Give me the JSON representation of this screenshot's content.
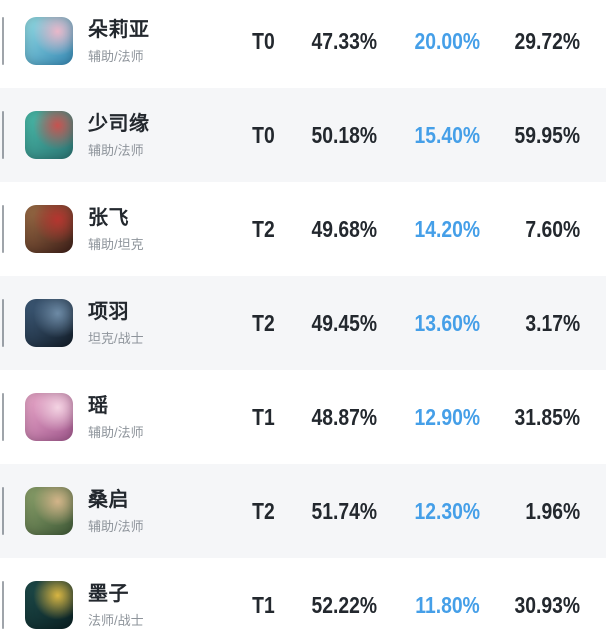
{
  "colors": {
    "accent_blue": "#459fe8",
    "text_dark": "#23282e",
    "text_gray": "#8e949b",
    "row_alt_bg": "#f5f6f8",
    "row_bg": "#ffffff"
  },
  "table": {
    "rows": [
      {
        "name": "朵莉亚",
        "role": "辅助/法师",
        "tier": "T0",
        "win_rate": "47.33%",
        "pick_rate": "20.00%",
        "ban_rate": "29.72%",
        "avatar_icon": "hero-avatar-duoliya",
        "avatar_colors": [
          "#8fd8e2",
          "#3e8fb8",
          "#e9b7c9"
        ]
      },
      {
        "name": "少司缘",
        "role": "辅助/法师",
        "tier": "T0",
        "win_rate": "50.18%",
        "pick_rate": "15.40%",
        "ban_rate": "59.95%",
        "avatar_icon": "hero-avatar-shaosiyuan",
        "avatar_colors": [
          "#49b9a8",
          "#2e7a78",
          "#c7524f"
        ]
      },
      {
        "name": "张飞",
        "role": "辅助/坦克",
        "tier": "T2",
        "win_rate": "49.68%",
        "pick_rate": "14.20%",
        "ban_rate": "7.60%",
        "avatar_icon": "hero-avatar-zhangfei",
        "avatar_colors": [
          "#9a6b45",
          "#45251c",
          "#b5352f"
        ]
      },
      {
        "name": "项羽",
        "role": "坦克/战士",
        "tier": "T2",
        "win_rate": "49.45%",
        "pick_rate": "13.60%",
        "ban_rate": "3.17%",
        "avatar_icon": "hero-avatar-xiangyu",
        "avatar_colors": [
          "#3d5a78",
          "#16222f",
          "#6d8aa5"
        ]
      },
      {
        "name": "瑶",
        "role": "辅助/法师",
        "tier": "T1",
        "win_rate": "48.87%",
        "pick_rate": "12.90%",
        "ban_rate": "31.85%",
        "avatar_icon": "hero-avatar-yao",
        "avatar_colors": [
          "#e7a6c8",
          "#a85f93",
          "#f3d3e2"
        ]
      },
      {
        "name": "桑启",
        "role": "辅助/法师",
        "tier": "T2",
        "win_rate": "51.74%",
        "pick_rate": "12.30%",
        "ban_rate": "1.96%",
        "avatar_icon": "hero-avatar-sangqi",
        "avatar_colors": [
          "#8aa06a",
          "#46603c",
          "#d3b489"
        ]
      },
      {
        "name": "墨子",
        "role": "法师/战士",
        "tier": "T1",
        "win_rate": "52.22%",
        "pick_rate": "11.80%",
        "ban_rate": "30.93%",
        "avatar_icon": "hero-avatar-mozi",
        "avatar_colors": [
          "#1d4a49",
          "#0c2426",
          "#d8b542"
        ]
      }
    ]
  }
}
